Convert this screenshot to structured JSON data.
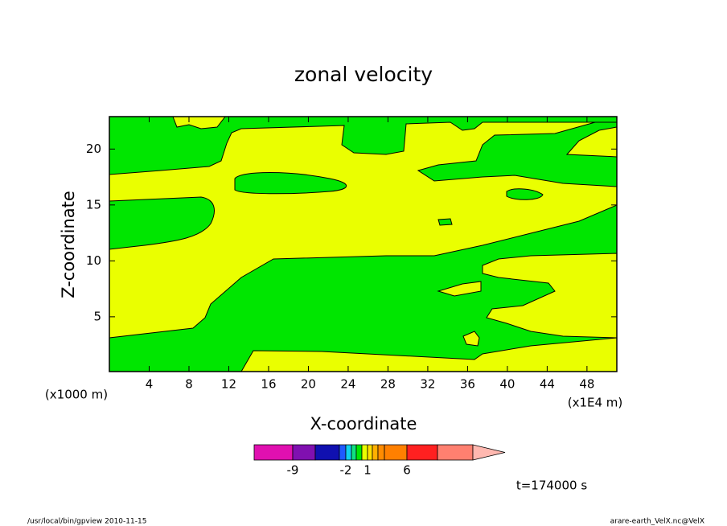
{
  "chart_data": {
    "type": "contour",
    "title": "zonal velocity",
    "xlabel": "X-coordinate",
    "ylabel": "Z-coordinate",
    "x_unit": "(x1E4 m)",
    "y_unit": "(x1000 m)",
    "xlim": [
      0,
      51
    ],
    "ylim": [
      0.1,
      22.9
    ],
    "xticks": [
      4,
      8,
      12,
      16,
      20,
      24,
      28,
      32,
      36,
      40,
      44,
      48
    ],
    "yticks": [
      5,
      10,
      15,
      20
    ],
    "colorbar": {
      "colors": [
        "#e010b0",
        "#8010b0",
        "#1010b0",
        "#1e5aff",
        "#10d0f0",
        "#10e080",
        "#00e600",
        "#eaff00",
        "#ffe000",
        "#ffb000",
        "#ff8c00",
        "#ff8000",
        "#ff2020",
        "#ff8070"
      ],
      "extension_color": "#ffb8b0",
      "labels": [
        "-9",
        null,
        null,
        "-2",
        null,
        null,
        null,
        "1",
        null,
        null,
        null,
        "6",
        null
      ]
    },
    "time_label": "t=174000 s",
    "footer_left": "/usr/local/bin/gpview  2010-11-15",
    "footer_right": "arare-earth_VelX.nc@VelX"
  }
}
